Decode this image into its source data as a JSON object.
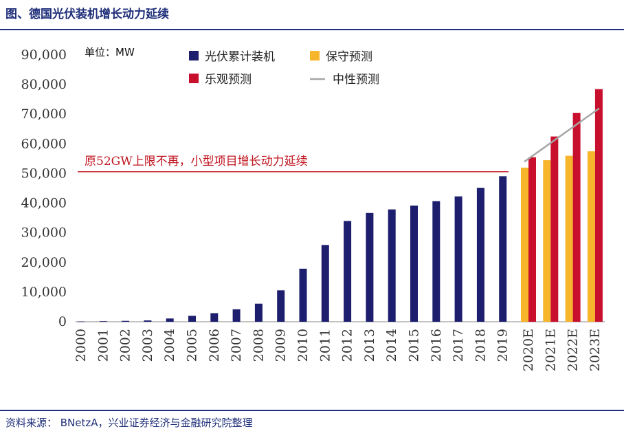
{
  "title": "图、德国光伏装机增长动力延续",
  "source": "资料来源： BNetzA，兴业证券经济与金融研究院整理",
  "chart_data": {
    "type": "bar",
    "unit": "单位：MW",
    "annotation": "原52GW上限不再，小型项目增长动力延续",
    "cap_line_value": 52000,
    "ylim": [
      0,
      90000
    ],
    "y_ticks": [
      "0",
      "10,000",
      "20,000",
      "30,000",
      "40,000",
      "50,000",
      "60,000",
      "70,000",
      "80,000",
      "90,000"
    ],
    "legend": {
      "cumulative": "光伏累计装机",
      "conservative": "保守预测",
      "optimistic": "乐观预测",
      "neutral": "中性预测"
    },
    "colors": {
      "cumulative": "#1d1f6e",
      "conservative": "#f7b52c",
      "optimistic": "#c8102e",
      "neutral": "#a6a6a6",
      "cap_line": "#c0141f"
    },
    "historical": {
      "categories": [
        "2000",
        "2001",
        "2002",
        "2003",
        "2004",
        "2005",
        "2006",
        "2007",
        "2008",
        "2009",
        "2010",
        "2011",
        "2012",
        "2013",
        "2014",
        "2015",
        "2016",
        "2017",
        "2018",
        "2019"
      ],
      "values": [
        100,
        200,
        300,
        450,
        1100,
        2000,
        2900,
        4200,
        6100,
        10600,
        17900,
        25900,
        34000,
        36700,
        37900,
        39200,
        40700,
        42300,
        45200,
        49100
      ]
    },
    "forecast": {
      "categories": [
        "2020E",
        "2021E",
        "2022E",
        "2023E"
      ],
      "conservative": [
        52000,
        54500,
        56000,
        57500
      ],
      "optimistic": [
        55500,
        62500,
        70500,
        78500
      ],
      "neutral_start": 54000,
      "neutral_end": 72000
    }
  }
}
